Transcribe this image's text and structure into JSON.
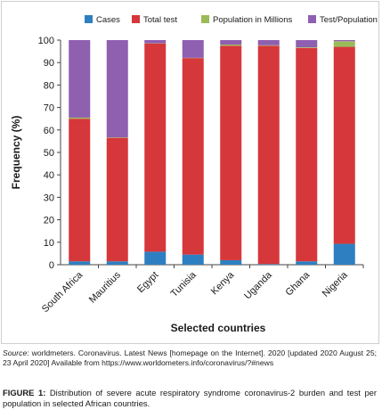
{
  "chart_data": {
    "type": "bar",
    "stacked": true,
    "categories": [
      "South Africa",
      "Mauritius",
      "Egypt",
      "Tunisia",
      "Kenya",
      "Uganda",
      "Ghana",
      "Nigeria"
    ],
    "series": [
      {
        "name": "Cases",
        "color": "#2e7fc1",
        "values": [
          1.5,
          1.5,
          5.8,
          4.5,
          2.0,
          0.3,
          1.5,
          9.3
        ]
      },
      {
        "name": "Total test",
        "color": "#d6373a",
        "values": [
          63.5,
          55.0,
          92.7,
          87.5,
          95.5,
          97.2,
          95.0,
          87.7
        ]
      },
      {
        "name": "Population in Millions",
        "color": "#9bbb59",
        "values": [
          0.5,
          0.2,
          0.1,
          0.1,
          0.5,
          0.2,
          0.3,
          2.5
        ]
      },
      {
        "name": "Test/Population",
        "color": "#8f5fb0",
        "values": [
          34.5,
          43.3,
          1.4,
          7.9,
          2.0,
          2.3,
          3.2,
          0.5
        ]
      }
    ],
    "ylim": [
      0,
      100
    ],
    "yticks": [
      0,
      10,
      20,
      30,
      40,
      50,
      60,
      70,
      80,
      90,
      100
    ],
    "ylabel": "Frequency (%)",
    "xlabel": "Selected countries",
    "legend_position": "top",
    "grid": false
  },
  "source": {
    "label": "Source",
    "text": ": worldmeters. Coronavirus. Latest News [homepage on the Internet]. 2020 [updated 2020 August 25; 23 April 2020] Available from https://www.worldometers.info/coronavirus/?#news"
  },
  "caption": {
    "label": "FIGURE 1:",
    "text": " Distribution of severe acute respiratory syndrome coronavirus-2 burden and test per population in selected African countries."
  }
}
